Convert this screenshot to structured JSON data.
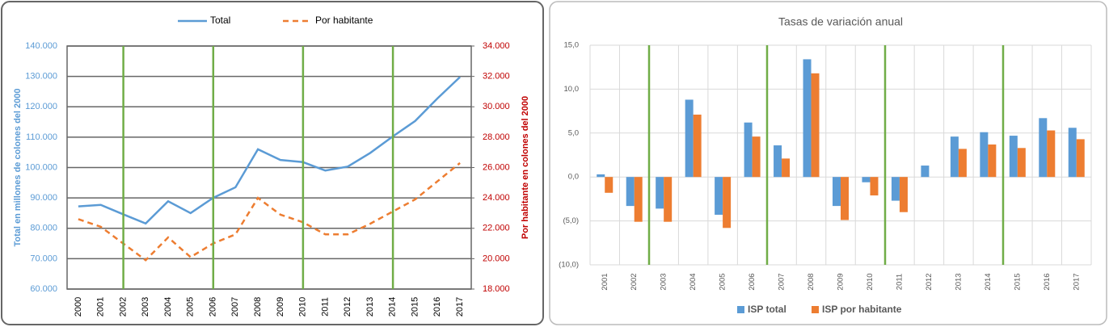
{
  "chart_data": [
    {
      "type": "line",
      "x": [
        "2000",
        "2001",
        "2002",
        "2003",
        "2004",
        "2005",
        "2006",
        "2007",
        "2008",
        "2009",
        "2010",
        "2011",
        "2012",
        "2013",
        "2014",
        "2015",
        "2016",
        "2017"
      ],
      "ylabel": "Total en millones de colones del 2000",
      "y2label": "Por habitante en colones del 2000",
      "ylim": [
        60000,
        140000
      ],
      "yticks": [
        {
          "value": 60000,
          "label": "60.000"
        },
        {
          "value": 70000,
          "label": "70.000"
        },
        {
          "value": 80000,
          "label": "80.000"
        },
        {
          "value": 90000,
          "label": "90.000"
        },
        {
          "value": 100000,
          "label": "100.000"
        },
        {
          "value": 110000,
          "label": "110.000"
        },
        {
          "value": 120000,
          "label": "120.000"
        },
        {
          "value": 130000,
          "label": "130.000"
        },
        {
          "value": 140000,
          "label": "140.000"
        }
      ],
      "y2lim": [
        18000,
        34000
      ],
      "y2ticks": [
        {
          "value": 18000,
          "label": "18.000"
        },
        {
          "value": 20000,
          "label": "20.000"
        },
        {
          "value": 22000,
          "label": "22.000"
        },
        {
          "value": 24000,
          "label": "24.000"
        },
        {
          "value": 26000,
          "label": "26.000"
        },
        {
          "value": 28000,
          "label": "28.000"
        },
        {
          "value": 30000,
          "label": "30.000"
        },
        {
          "value": 32000,
          "label": "32.000"
        },
        {
          "value": 34000,
          "label": "34.000"
        }
      ],
      "grid": true,
      "legend": "top",
      "series": [
        {
          "name": "Total",
          "color": "#5b9bd5",
          "line_style": "solid",
          "values": [
            87200,
            87700,
            84600,
            81600,
            88900,
            85000,
            90000,
            93500,
            106000,
            102500,
            101800,
            99000,
            100300,
            104800,
            110200,
            115300,
            122800,
            129800
          ]
        },
        {
          "name": "Por habitante",
          "color": "#ed7d31",
          "line_style": "dashed",
          "axis": "y2",
          "values": [
            22600,
            22100,
            21000,
            19900,
            21400,
            20100,
            21000,
            21600,
            24000,
            22900,
            22400,
            21600,
            21600,
            22300,
            23100,
            23900,
            25100,
            26300
          ]
        }
      ]
    },
    {
      "type": "bar",
      "title": "Tasas de variación anual",
      "categories": [
        "2001",
        "2002",
        "2003",
        "2004",
        "2005",
        "2006",
        "2007",
        "2008",
        "2009",
        "2010",
        "2011",
        "2012",
        "2013",
        "2014",
        "2015",
        "2016",
        "2017"
      ],
      "ylim": [
        -10,
        15
      ],
      "yticks": [
        {
          "value": -10,
          "label": "(10,0)"
        },
        {
          "value": -5,
          "label": "(5,0)"
        },
        {
          "value": 0,
          "label": "0,0"
        },
        {
          "value": 5,
          "label": "5,0"
        },
        {
          "value": 10,
          "label": "10,0"
        },
        {
          "value": 15,
          "label": "15,0"
        }
      ],
      "grid": true,
      "legend": "bottom",
      "series": [
        {
          "name": "ISP total",
          "color": "#5b9bd5",
          "values": [
            0.3,
            -3.3,
            -3.6,
            8.8,
            -4.3,
            6.2,
            3.6,
            13.4,
            -3.3,
            -0.6,
            -2.7,
            1.3,
            4.6,
            5.1,
            4.7,
            6.7,
            5.6
          ]
        },
        {
          "name": "ISP por habitante",
          "color": "#ed7d31",
          "values": [
            -1.8,
            -5.1,
            -5.1,
            7.1,
            -5.8,
            4.6,
            2.1,
            11.8,
            -4.9,
            -2.1,
            -4.0,
            0,
            3.2,
            3.7,
            3.3,
            5.3,
            4.3
          ]
        }
      ]
    }
  ]
}
